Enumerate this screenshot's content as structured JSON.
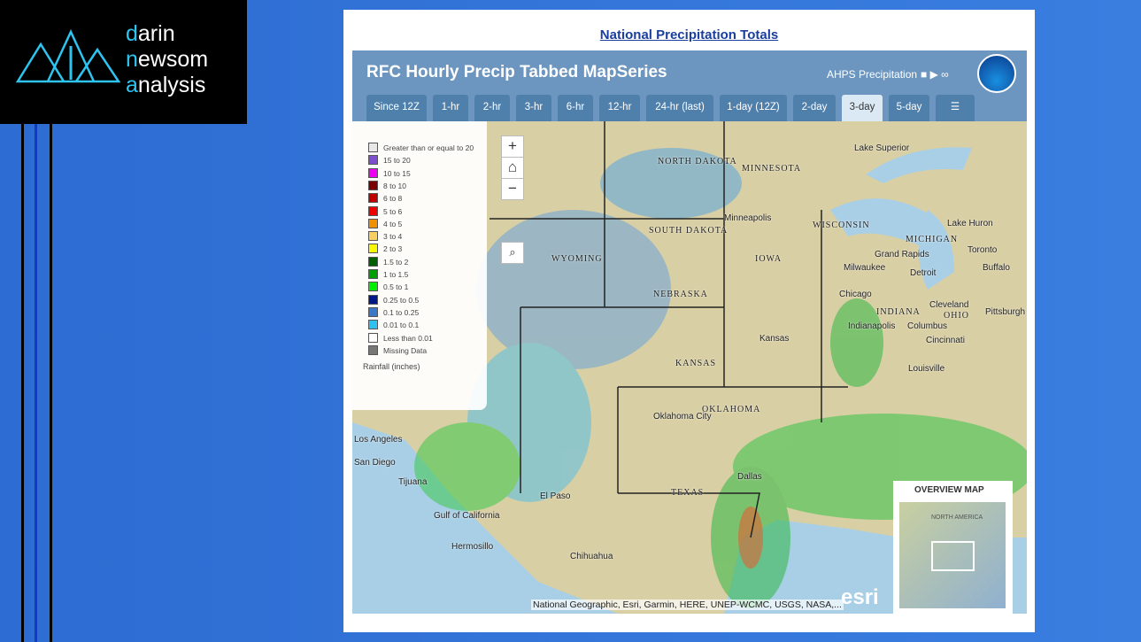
{
  "logo": [
    {
      "initial": "d",
      "rest": "arin"
    },
    {
      "initial": "n",
      "rest": "ewsom"
    },
    {
      "initial": "a",
      "rest": "nalysis"
    }
  ],
  "link": "National Precipitation Totals",
  "app": {
    "title": "RFC Hourly Precip Tabbed MapSeries",
    "ahps": "AHPS Precipitation",
    "tabs": [
      "Since 12Z",
      "1-hr",
      "2-hr",
      "3-hr",
      "6-hr",
      "12-hr",
      "24-hr (last)",
      "1-day (12Z)",
      "2-day",
      "3-day",
      "5-day",
      "☰"
    ],
    "active_tab": "3-day"
  },
  "legend": {
    "items": [
      {
        "label": "Greater than or equal to 20",
        "color": "#e8e8e8"
      },
      {
        "label": "15 to 20",
        "color": "#7d4fcf"
      },
      {
        "label": "10 to 15",
        "color": "#f000f0"
      },
      {
        "label": "8 to 10",
        "color": "#7a0000"
      },
      {
        "label": "6 to 8",
        "color": "#c00000"
      },
      {
        "label": "5 to 6",
        "color": "#f00000"
      },
      {
        "label": "4 to 5",
        "color": "#f09000"
      },
      {
        "label": "3 to 4",
        "color": "#f8d060"
      },
      {
        "label": "2 to 3",
        "color": "#f8f800"
      },
      {
        "label": "1.5 to 2",
        "color": "#006000"
      },
      {
        "label": "1 to 1.5",
        "color": "#00a000"
      },
      {
        "label": "0.5 to 1",
        "color": "#00f000"
      },
      {
        "label": "0.25 to 0.5",
        "color": "#00188a"
      },
      {
        "label": "0.1 to 0.25",
        "color": "#3a78c8"
      },
      {
        "label": "0.01 to 0.1",
        "color": "#30c0f0"
      },
      {
        "label": "Less than 0.01",
        "color": "#ffffff"
      },
      {
        "label": "Missing Data",
        "color": "#777777"
      }
    ],
    "title": "Rainfall (inches)"
  },
  "map_labels": [
    "NORTH DAKOTA",
    "MINNESOTA",
    "SOUTH DAKOTA",
    "WYOMING",
    "NEBRASKA",
    "IOWA",
    "WISCONSIN",
    "MICHIGAN",
    "Minneapolis",
    "Grand Rapids",
    "Milwaukee",
    "Detroit",
    "Toronto",
    "Buffalo",
    "Chicago",
    "Cleveland",
    "OHIO",
    "Pittsburgh",
    "INDIANA",
    "Indianapolis",
    "Columbus",
    "Cincinnati",
    "Louisville",
    "KANSAS",
    "Kansas",
    "OKLAHOMA",
    "Oklahoma City",
    "TEXAS",
    "Dallas",
    "El Paso",
    "Los Angeles",
    "San Diego",
    "Tijuana",
    "Hermosillo",
    "Chihuahua",
    "Lake Superior",
    "Lake Huron",
    "Gulf of California"
  ],
  "overview": {
    "title": "OVERVIEW MAP",
    "label": "NORTH AMERICA"
  },
  "attribution": "National Geographic, Esri, Garmin, HERE, UNEP-WCMC, USGS, NASA,...",
  "esri": "esri"
}
